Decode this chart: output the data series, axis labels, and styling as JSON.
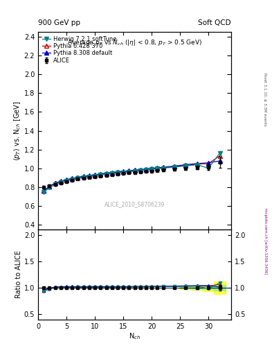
{
  "title_left": "900 GeV pp",
  "title_right": "Soft QCD",
  "ylabel_main": "$\\langle p_T \\rangle$ vs. N$_{ch}$ [GeV]",
  "ylabel_ratio": "Ratio to ALICE",
  "xlabel": "N$_{ch}$",
  "watermark": "ALICE_2010_S8706239",
  "right_label": "mcplots.cern.ch [arXiv:1306.3436]",
  "right_label2": "Rivet 3.1.10, ≥ 3.3M events",
  "alice_x": [
    1,
    2,
    3,
    4,
    5,
    6,
    7,
    8,
    9,
    10,
    11,
    12,
    13,
    14,
    15,
    16,
    17,
    18,
    19,
    20,
    21,
    22,
    24,
    26,
    28,
    30,
    32
  ],
  "alice_y": [
    0.8,
    0.818,
    0.832,
    0.848,
    0.862,
    0.876,
    0.886,
    0.896,
    0.905,
    0.912,
    0.92,
    0.928,
    0.935,
    0.94,
    0.947,
    0.953,
    0.957,
    0.963,
    0.968,
    0.972,
    0.978,
    0.982,
    0.993,
    1.002,
    1.01,
    1.018,
    1.065
  ],
  "alice_yerr": [
    0.012,
    0.01,
    0.009,
    0.008,
    0.007,
    0.007,
    0.007,
    0.006,
    0.006,
    0.006,
    0.006,
    0.006,
    0.006,
    0.006,
    0.006,
    0.007,
    0.007,
    0.007,
    0.008,
    0.008,
    0.009,
    0.01,
    0.012,
    0.015,
    0.02,
    0.03,
    0.06
  ],
  "herwig_x": [
    1,
    2,
    3,
    4,
    5,
    6,
    7,
    8,
    9,
    10,
    11,
    12,
    13,
    14,
    15,
    16,
    17,
    18,
    19,
    20,
    21,
    22,
    24,
    26,
    28,
    30,
    32
  ],
  "herwig_y": [
    0.748,
    0.798,
    0.828,
    0.852,
    0.868,
    0.882,
    0.893,
    0.903,
    0.913,
    0.921,
    0.93,
    0.938,
    0.945,
    0.952,
    0.958,
    0.965,
    0.971,
    0.978,
    0.984,
    0.99,
    0.997,
    1.003,
    1.015,
    1.027,
    1.04,
    1.002,
    1.165
  ],
  "herwig_color": "#008080",
  "pythia6_x": [
    1,
    2,
    3,
    4,
    5,
    6,
    7,
    8,
    9,
    10,
    11,
    12,
    13,
    14,
    15,
    16,
    17,
    18,
    19,
    20,
    21,
    22,
    24,
    26,
    28,
    30,
    32
  ],
  "pythia6_y": [
    0.762,
    0.81,
    0.842,
    0.862,
    0.878,
    0.89,
    0.901,
    0.911,
    0.92,
    0.928,
    0.936,
    0.943,
    0.95,
    0.957,
    0.963,
    0.97,
    0.976,
    0.982,
    0.988,
    0.994,
    1.0,
    1.007,
    1.02,
    1.032,
    1.045,
    1.052,
    1.135
  ],
  "pythia6_color": "#cc0000",
  "pythia8_x": [
    1,
    2,
    3,
    4,
    5,
    6,
    7,
    8,
    9,
    10,
    11,
    12,
    13,
    14,
    15,
    16,
    17,
    18,
    19,
    20,
    21,
    22,
    24,
    26,
    28,
    30,
    32
  ],
  "pythia8_y": [
    0.762,
    0.81,
    0.845,
    0.865,
    0.882,
    0.895,
    0.906,
    0.917,
    0.926,
    0.934,
    0.943,
    0.95,
    0.957,
    0.963,
    0.97,
    0.976,
    0.982,
    0.988,
    0.994,
    1.0,
    1.006,
    1.013,
    1.025,
    1.04,
    1.052,
    1.06,
    1.08
  ],
  "pythia8_color": "#0000cc",
  "xlim": [
    0,
    34
  ],
  "ylim_main": [
    0.35,
    2.45
  ],
  "ylim_ratio": [
    0.4,
    2.1
  ],
  "yticks_main": [
    0.4,
    0.6,
    0.8,
    1.0,
    1.2,
    1.4,
    1.6,
    1.8,
    2.0,
    2.2,
    2.4
  ],
  "yticks_ratio": [
    0.5,
    1.0,
    1.5,
    2.0
  ],
  "xticks": [
    0,
    5,
    10,
    15,
    20,
    25,
    30
  ],
  "alice_color": "#000000",
  "bg_color": "#ffffff"
}
